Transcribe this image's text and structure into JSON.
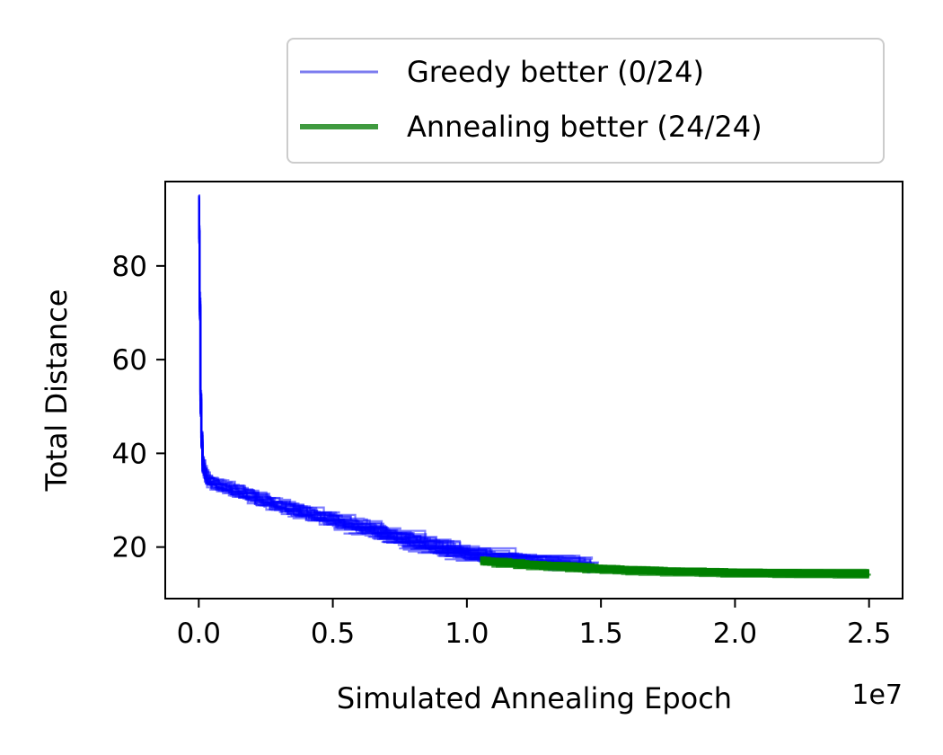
{
  "chart_data": {
    "type": "line",
    "title": "",
    "xlabel": "Simulated Annealing Epoch",
    "ylabel": "Total Distance",
    "x_offset_label": "1e7",
    "xlim": [
      -1250000,
      26250000
    ],
    "ylim": [
      9.0,
      98.0
    ],
    "xticks": [
      0,
      5000000,
      10000000,
      15000000,
      20000000,
      25000000
    ],
    "xtick_labels": [
      "0.0",
      "0.5",
      "1.0",
      "1.5",
      "2.0",
      "2.5"
    ],
    "yticks": [
      20,
      40,
      60,
      80
    ],
    "ytick_labels": [
      "20",
      "40",
      "60",
      "80"
    ],
    "grid": false,
    "legend_position": "upper-right, above axes",
    "legend": [
      {
        "label": "Greedy better (0/24)",
        "color": "#7b7bef",
        "style": "thin-line"
      },
      {
        "label": "Annealing better (24/24)",
        "color": "#3f9a3f",
        "style": "thick-line"
      }
    ],
    "series": [
      {
        "name": "Greedy better (0/24)",
        "color": "#0000ff",
        "alpha": 0.5,
        "runs": 24,
        "x": [
          0,
          20000,
          60000,
          120000,
          250000,
          500000,
          1000000,
          2000000,
          3000000,
          4000000,
          5000000,
          6000000,
          7000000,
          8000000,
          9000000,
          10000000,
          11000000,
          12000000,
          13000000,
          14000000,
          15000000
        ],
        "y": [
          94,
          80,
          50,
          38,
          35,
          34,
          33,
          31,
          29,
          27.5,
          26,
          24.5,
          23,
          21.5,
          20,
          19,
          18.2,
          17.6,
          17.1,
          16.6,
          16.2
        ]
      },
      {
        "name": "Annealing better (24/24)",
        "color": "#008000",
        "alpha": 0.75,
        "runs": 24,
        "x": [
          10500000,
          12000000,
          13500000,
          15000000,
          16500000,
          18000000,
          20000000,
          22500000,
          25000000
        ],
        "y": [
          17,
          16.3,
          15.8,
          15.3,
          15,
          14.8,
          14.6,
          14.5,
          14.4
        ]
      }
    ]
  }
}
